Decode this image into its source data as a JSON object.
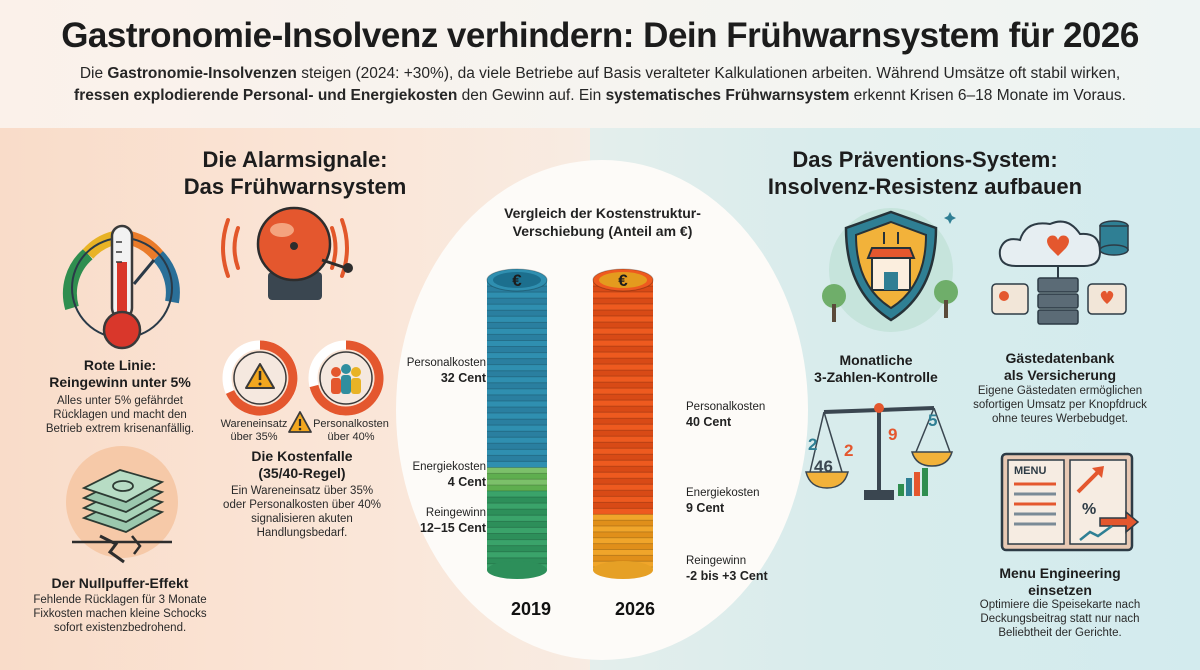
{
  "header": {
    "title": "Gastronomie-Insolvenz verhindern: Dein Frühwarnsystem für 2026",
    "intro_1": "Die ",
    "intro_2": "Gastronomie-Insolvenzen",
    "intro_3": " steigen (2024: +30%), da viele Betriebe auf Basis veralteter Kalkulationen arbeiten. Während Umsätze oft stabil wirken,",
    "intro_4": "fressen explodierende Personal- und Energiekosten",
    "intro_5": " den Gewinn auf. Ein ",
    "intro_6": "systematisches Frühwarnsystem",
    "intro_7": " erkennt Krisen 6–18 Monate im Voraus."
  },
  "left": {
    "title_line1": "Die Alarmsignale:",
    "title_line2": "Das Frühwarnsystem",
    "red_line_title1": "Rote Linie:",
    "red_line_title2": "Reingewinn unter 5%",
    "red_line_text1": "Alles unter 5% gefährdet",
    "red_line_text2": "Rücklagen und macht den",
    "red_line_text3": "Betrieb extrem krisenanfällig.",
    "wareneinsatz_1": "Wareneinsatz",
    "wareneinsatz_2": "über 35%",
    "personal_1": "Personalkosten",
    "personal_2": "über 40%",
    "kostenfalle_title1": "Die Kostenfalle",
    "kostenfalle_title2": "(35/40-Regel)",
    "kostenfalle_text1": "Ein Wareneinsatz über 35%",
    "kostenfalle_text2": "oder Personalkosten über 40%",
    "kostenfalle_text3": "signalisieren akuten",
    "kostenfalle_text4": "Handlungsbedarf.",
    "nullpuffer_title": "Der Nullpuffer-Effekt",
    "nullpuffer_text1": "Fehlende Rücklagen für 3 Monate",
    "nullpuffer_text2": "Fixkosten machen kleine Schocks",
    "nullpuffer_text3": "sofort existenzbedrohend."
  },
  "chart_data": {
    "type": "bar",
    "title": "Vergleich der Kostenstruktur-Verschiebung (Anteil am €)",
    "title_line1": "Vergleich der Kostenstruktur-",
    "title_line2": "Verschiebung (Anteil am €)",
    "categories": [
      "2019",
      "2026"
    ],
    "series": [
      {
        "name": "Personalkosten",
        "values": [
          32,
          40
        ],
        "labels": [
          "32 Cent",
          "40 Cent"
        ]
      },
      {
        "name": "Energiekosten",
        "values": [
          4,
          9
        ],
        "labels": [
          "4 Cent",
          "9 Cent"
        ]
      },
      {
        "name": "Reingewinn",
        "values": [
          13.5,
          0.5
        ],
        "labels": [
          "12–15 Cent",
          "-2 bis +3 Cent"
        ]
      }
    ],
    "colors": {
      "coin_2019": "#2f8fb0",
      "coin_2026": "#ee5a1f",
      "euro_2019": "#1c6f8e",
      "euro_2026": "#e49b1e"
    }
  },
  "right": {
    "title_line1": "Das Präventions-System:",
    "title_line2": "Insolvenz-Resistenz aufbauen",
    "monthly_1": "Monatliche",
    "monthly_2": "3-Zahlen-Kontrolle",
    "scale_numbers": [
      "2",
      "2",
      "9",
      "5",
      "46"
    ],
    "guest_title1": "Gästedatenbank",
    "guest_title2": "als Versicherung",
    "guest_text1": "Eigene Gästedaten ermöglichen",
    "guest_text2": "sofortigen Umsatz per Knopfdruck",
    "guest_text3": "ohne teures Werbebudget.",
    "menu_word": "MENU",
    "menu_title1": "Menu Engineering",
    "menu_title2": "einsetzen",
    "menu_text1": "Optimiere die Speisekarte nach",
    "menu_text2": "Deckungsbeitrag statt nur nach",
    "menu_text3": "Beliebtheit der Gerichte."
  },
  "icons": [
    "thermometer-gauge-icon",
    "alarm-bell-icon",
    "warning-donut-icon",
    "staff-donut-icon",
    "warning-triangle-icon",
    "money-stack-icon",
    "shield-restaurant-icon",
    "cloud-database-icon",
    "balance-scale-icon",
    "menu-book-icon",
    "euro-icon"
  ]
}
